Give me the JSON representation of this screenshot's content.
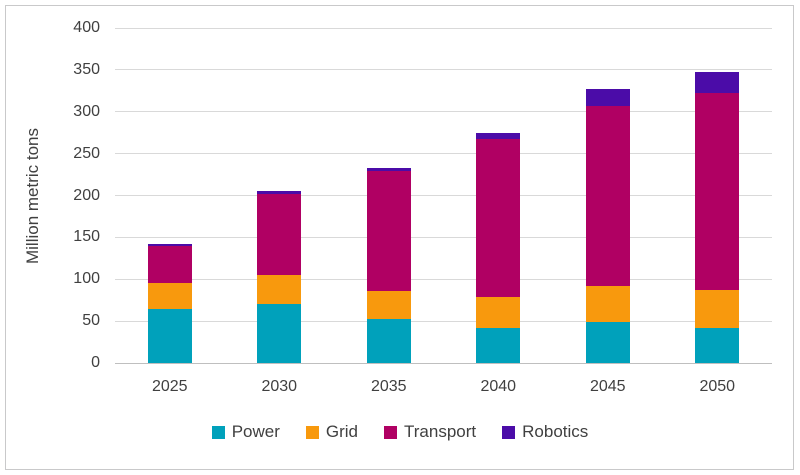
{
  "chart_data": {
    "type": "bar",
    "stacked": true,
    "title": "",
    "xlabel": "",
    "ylabel": "Million metric tons",
    "ylim": [
      0,
      400
    ],
    "ytick_step": 50,
    "grid": true,
    "legend_position": "bottom",
    "categories": [
      "2025",
      "2030",
      "2035",
      "2040",
      "2045",
      "2050"
    ],
    "series": [
      {
        "name": "Power",
        "color": "#00A1BB",
        "values": [
          64,
          71,
          52,
          42,
          49,
          42
        ]
      },
      {
        "name": "Grid",
        "color": "#F8990D",
        "values": [
          31,
          34,
          34,
          37,
          43,
          45
        ]
      },
      {
        "name": "Transport",
        "color": "#B00063",
        "values": [
          45,
          97,
          143,
          189,
          215,
          235
        ]
      },
      {
        "name": "Robotics",
        "color": "#4B0CA8",
        "values": [
          2,
          3,
          4,
          7,
          20,
          26
        ]
      }
    ],
    "totals": [
      142,
      205,
      233,
      275,
      327,
      348
    ]
  },
  "theme": {
    "grid_color": "#D9D9D9",
    "axis_line_color": "#BFBFBF",
    "text_color": "#404040",
    "border_color": "#C9C9CA",
    "background": "#FFFFFF"
  }
}
